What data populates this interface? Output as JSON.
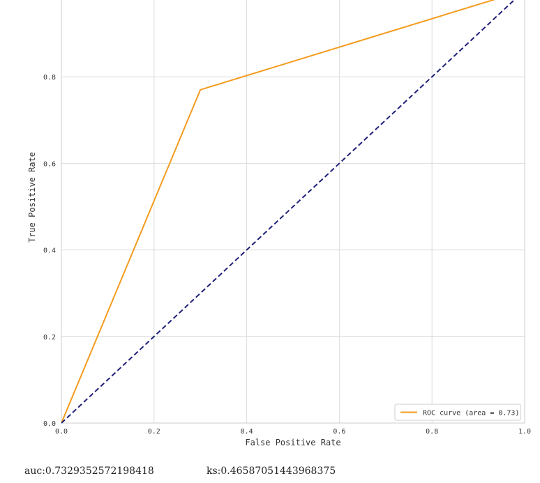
{
  "chart_data": {
    "type": "line",
    "title": "",
    "xlabel": "False Positive Rate",
    "ylabel": "True Positive Rate",
    "xlim": [
      0.0,
      1.0
    ],
    "ylim": [
      0.0,
      1.0
    ],
    "x_ticks": [
      "0.0",
      "0.2",
      "0.4",
      "0.6",
      "0.8",
      "1.0"
    ],
    "y_ticks": [
      "0.0",
      "0.2",
      "0.4",
      "0.6",
      "0.8"
    ],
    "grid": true,
    "legend_position": "bottom-right",
    "series": [
      {
        "name": "ROC curve (area = 0.73)",
        "color": "#f39c1f",
        "style": "solid",
        "x": [
          0.0,
          0.3,
          1.0
        ],
        "y": [
          0.0,
          0.77,
          1.0
        ]
      },
      {
        "color": "#1f1f7a",
        "style": "dashed",
        "x": [
          0.0,
          1.0
        ],
        "y": [
          0.0,
          1.0
        ]
      }
    ]
  },
  "metrics": {
    "auc": "auc:0.7329352572198418",
    "ks": "ks:0.46587051443968375"
  }
}
